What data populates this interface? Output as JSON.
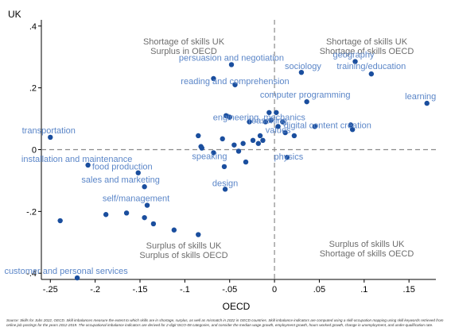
{
  "chart_data": {
    "type": "scatter",
    "xlabel": "OECD",
    "ylabel": "UK",
    "xlim": [
      -0.26,
      0.18
    ],
    "ylim": [
      -0.42,
      0.42
    ],
    "xticks": [
      -0.25,
      -0.2,
      -0.15,
      -0.1,
      -0.05,
      0,
      0.05,
      0.1,
      0.15
    ],
    "xtick_labels": [
      "-.25",
      "-.2",
      "-.15",
      "-.1",
      "-.05",
      "0",
      ".05",
      ".1",
      ".15"
    ],
    "yticks": [
      0.4,
      0.2,
      0,
      -0.2,
      -0.4
    ],
    "ytick_labels": [
      ".4",
      ".2",
      "0",
      "-.2",
      "-.4"
    ],
    "reference_lines": {
      "x": 0,
      "y": 0,
      "style": "dashed"
    },
    "grid": false,
    "marker_color": "#1a4e9e",
    "label_color": "#5b86c8",
    "quadrant_labels": [
      {
        "lines": [
          "Shortage of skills UK",
          "Surplus in OECD"
        ],
        "position": "top-left"
      },
      {
        "lines": [
          "Shortage of skills UK",
          "Shortage of skills OECD"
        ],
        "position": "top-right"
      },
      {
        "lines": [
          "Surplus of skills UK",
          "Surplus of skills OECD"
        ],
        "position": "bottom-left"
      },
      {
        "lines": [
          "Surplus of skills UK",
          "Shortage of skills OECD"
        ],
        "position": "bottom-right"
      }
    ],
    "points": [
      {
        "x": -0.25,
        "y": 0.04,
        "label": "transportation"
      },
      {
        "x": -0.208,
        "y": -0.05,
        "label": "installation and maintenance"
      },
      {
        "x": -0.22,
        "y": -0.415,
        "label": "customer and personal services"
      },
      {
        "x": -0.239,
        "y": -0.23,
        "label": ""
      },
      {
        "x": -0.188,
        "y": -0.21,
        "label": ""
      },
      {
        "x": -0.165,
        "y": -0.205,
        "label": ""
      },
      {
        "x": -0.145,
        "y": -0.22,
        "label": ""
      },
      {
        "x": -0.135,
        "y": -0.24,
        "label": ""
      },
      {
        "x": -0.112,
        "y": -0.26,
        "label": ""
      },
      {
        "x": -0.085,
        "y": -0.275,
        "label": ""
      },
      {
        "x": -0.142,
        "y": -0.18,
        "label": "self/management"
      },
      {
        "x": -0.145,
        "y": -0.12,
        "label": "sales and marketing"
      },
      {
        "x": -0.152,
        "y": -0.075,
        "label": "food production"
      },
      {
        "x": -0.085,
        "y": 0.045,
        "label": ""
      },
      {
        "x": -0.082,
        "y": 0.01,
        "label": ""
      },
      {
        "x": -0.081,
        "y": 0.005,
        "label": ""
      },
      {
        "x": -0.068,
        "y": -0.01,
        "label": "speaking"
      },
      {
        "x": -0.056,
        "y": -0.055,
        "label": ""
      },
      {
        "x": -0.055,
        "y": -0.128,
        "label": "design"
      },
      {
        "x": -0.058,
        "y": 0.035,
        "label": ""
      },
      {
        "x": -0.054,
        "y": 0.11,
        "label": ""
      },
      {
        "x": -0.05,
        "y": 0.105,
        "label": ""
      },
      {
        "x": -0.048,
        "y": 0.275,
        "label": "persuasion and negotiation"
      },
      {
        "x": -0.068,
        "y": 0.23,
        "label": ""
      },
      {
        "x": -0.044,
        "y": 0.21,
        "label": "reading and comprehension"
      },
      {
        "x": -0.045,
        "y": 0.015,
        "label": ""
      },
      {
        "x": -0.04,
        "y": -0.005,
        "label": ""
      },
      {
        "x": -0.035,
        "y": 0.02,
        "label": ""
      },
      {
        "x": -0.032,
        "y": -0.04,
        "label": ""
      },
      {
        "x": -0.028,
        "y": 0.09,
        "label": ""
      },
      {
        "x": -0.024,
        "y": 0.03,
        "label": ""
      },
      {
        "x": -0.018,
        "y": 0.02,
        "label": ""
      },
      {
        "x": -0.016,
        "y": 0.045,
        "label": ""
      },
      {
        "x": -0.013,
        "y": 0.03,
        "label": ""
      },
      {
        "x": -0.01,
        "y": 0.09,
        "label": "engineering, mechanics"
      },
      {
        "x": -0.006,
        "y": 0.12,
        "label": ""
      },
      {
        "x": -0.004,
        "y": 0.095,
        "label": "reasoning"
      },
      {
        "x": 0.002,
        "y": 0.12,
        "label": ""
      },
      {
        "x": 0.004,
        "y": 0.075,
        "label": "values"
      },
      {
        "x": 0.009,
        "y": 0.09,
        "label": ""
      },
      {
        "x": 0.012,
        "y": 0.055,
        "label": ""
      },
      {
        "x": 0.014,
        "y": -0.025,
        "label": "physics"
      },
      {
        "x": 0.022,
        "y": 0.045,
        "label": ""
      },
      {
        "x": 0.03,
        "y": 0.25,
        "label": "sociology"
      },
      {
        "x": 0.036,
        "y": 0.155,
        "label": "computer programming"
      },
      {
        "x": 0.045,
        "y": 0.075,
        "label": "digital content creation"
      },
      {
        "x": 0.085,
        "y": 0.08,
        "label": ""
      },
      {
        "x": 0.087,
        "y": 0.065,
        "label": ""
      },
      {
        "x": 0.09,
        "y": 0.285,
        "label": "geography"
      },
      {
        "x": 0.108,
        "y": 0.245,
        "label": "training/education"
      },
      {
        "x": 0.17,
        "y": 0.15,
        "label": "learning"
      }
    ]
  },
  "note": "Source: Skills for Jobs 2022, OECD. Skill imbalances measure the extent to which skills are in shortage, surplus, as well as mismatch in 2022 in OECD countries. Skill imbalance indicators are computed using a skill-occupation mapping using skill keywords retrieved from online job postings for the years 2012-2019. The occupational imbalance indicators are derived for 2-digit ISCO-08 categories, and consider the median wage growth, employment growth, hours worked growth, change in unemployment, and under-qualification rate."
}
